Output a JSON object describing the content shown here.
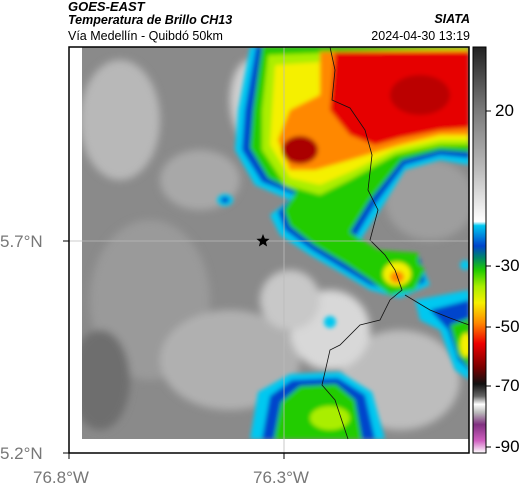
{
  "header": {
    "satellite": "GOES-EAST",
    "product": "Temperatura de Brillo CH13",
    "region": "Vía Medellín - Quibdó 50km",
    "organization": "SIATA",
    "datetime": "2024-04-30 13:19"
  },
  "axes": {
    "lat_labels": [
      "5.7°N",
      "5.2°N"
    ],
    "lon_labels": [
      "76.8°W",
      "76.3°W"
    ]
  },
  "colorbar": {
    "labels": [
      "20",
      "-30",
      "-50",
      "-70",
      "-90"
    ]
  },
  "colors": {
    "cold_red": "#e60000",
    "orange": "#ff8800",
    "yellow": "#f5f000",
    "green": "#22cc00",
    "blue": "#0055dd",
    "cyan": "#00c8f0",
    "gray_clear": "#7a7a7a"
  },
  "marker": {
    "icon": "star-icon"
  }
}
